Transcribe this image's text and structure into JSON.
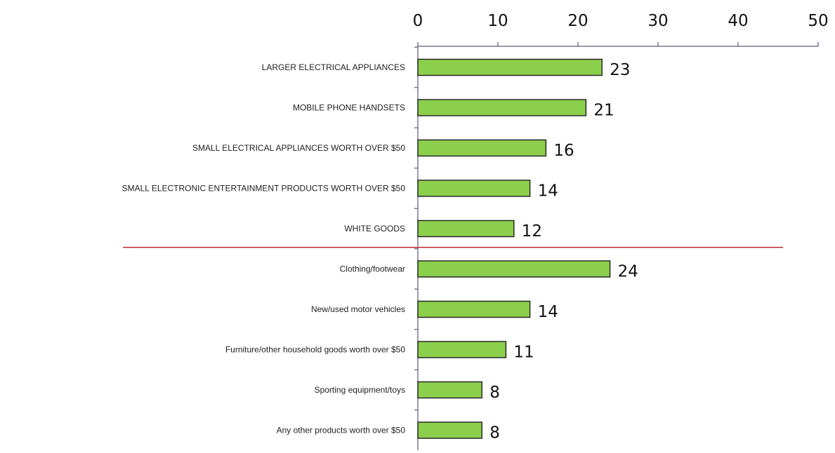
{
  "chart_data": {
    "type": "bar",
    "orientation": "horizontal",
    "xlim": [
      0,
      50
    ],
    "x_ticks": [
      "0",
      "10",
      "20",
      "30",
      "40",
      "50"
    ],
    "x_axis_position": "top",
    "grid": false,
    "legend": "none",
    "categories": [
      "LARGER ELECTRICAL APPLIANCES",
      "MOBILE PHONE HANDSETS",
      "SMALL ELECTRICAL APPLIANCES WORTH OVER $50",
      "SMALL ELECTRONIC ENTERTAINMENT PRODUCTS WORTH OVER $50",
      "WHITE GOODS",
      "Clothing/footwear",
      "New/used motor vehicles",
      "Furniture/other household goods worth over $50",
      "Sporting equipment/toys",
      "Any other products worth over $50"
    ],
    "values": [
      23,
      21,
      16,
      14,
      12,
      24,
      14,
      11,
      8,
      8
    ],
    "data_labels": [
      "23",
      "21",
      "16",
      "14",
      "12",
      "24",
      "14",
      "11",
      "8",
      "8"
    ],
    "group_divider_after_category": "WHITE GOODS",
    "colors": {
      "bar_fill": "#8ccf4d",
      "bar_stroke": "#1f1f1f",
      "divider": "#c0292b",
      "axis": "#5a5a7a"
    }
  }
}
